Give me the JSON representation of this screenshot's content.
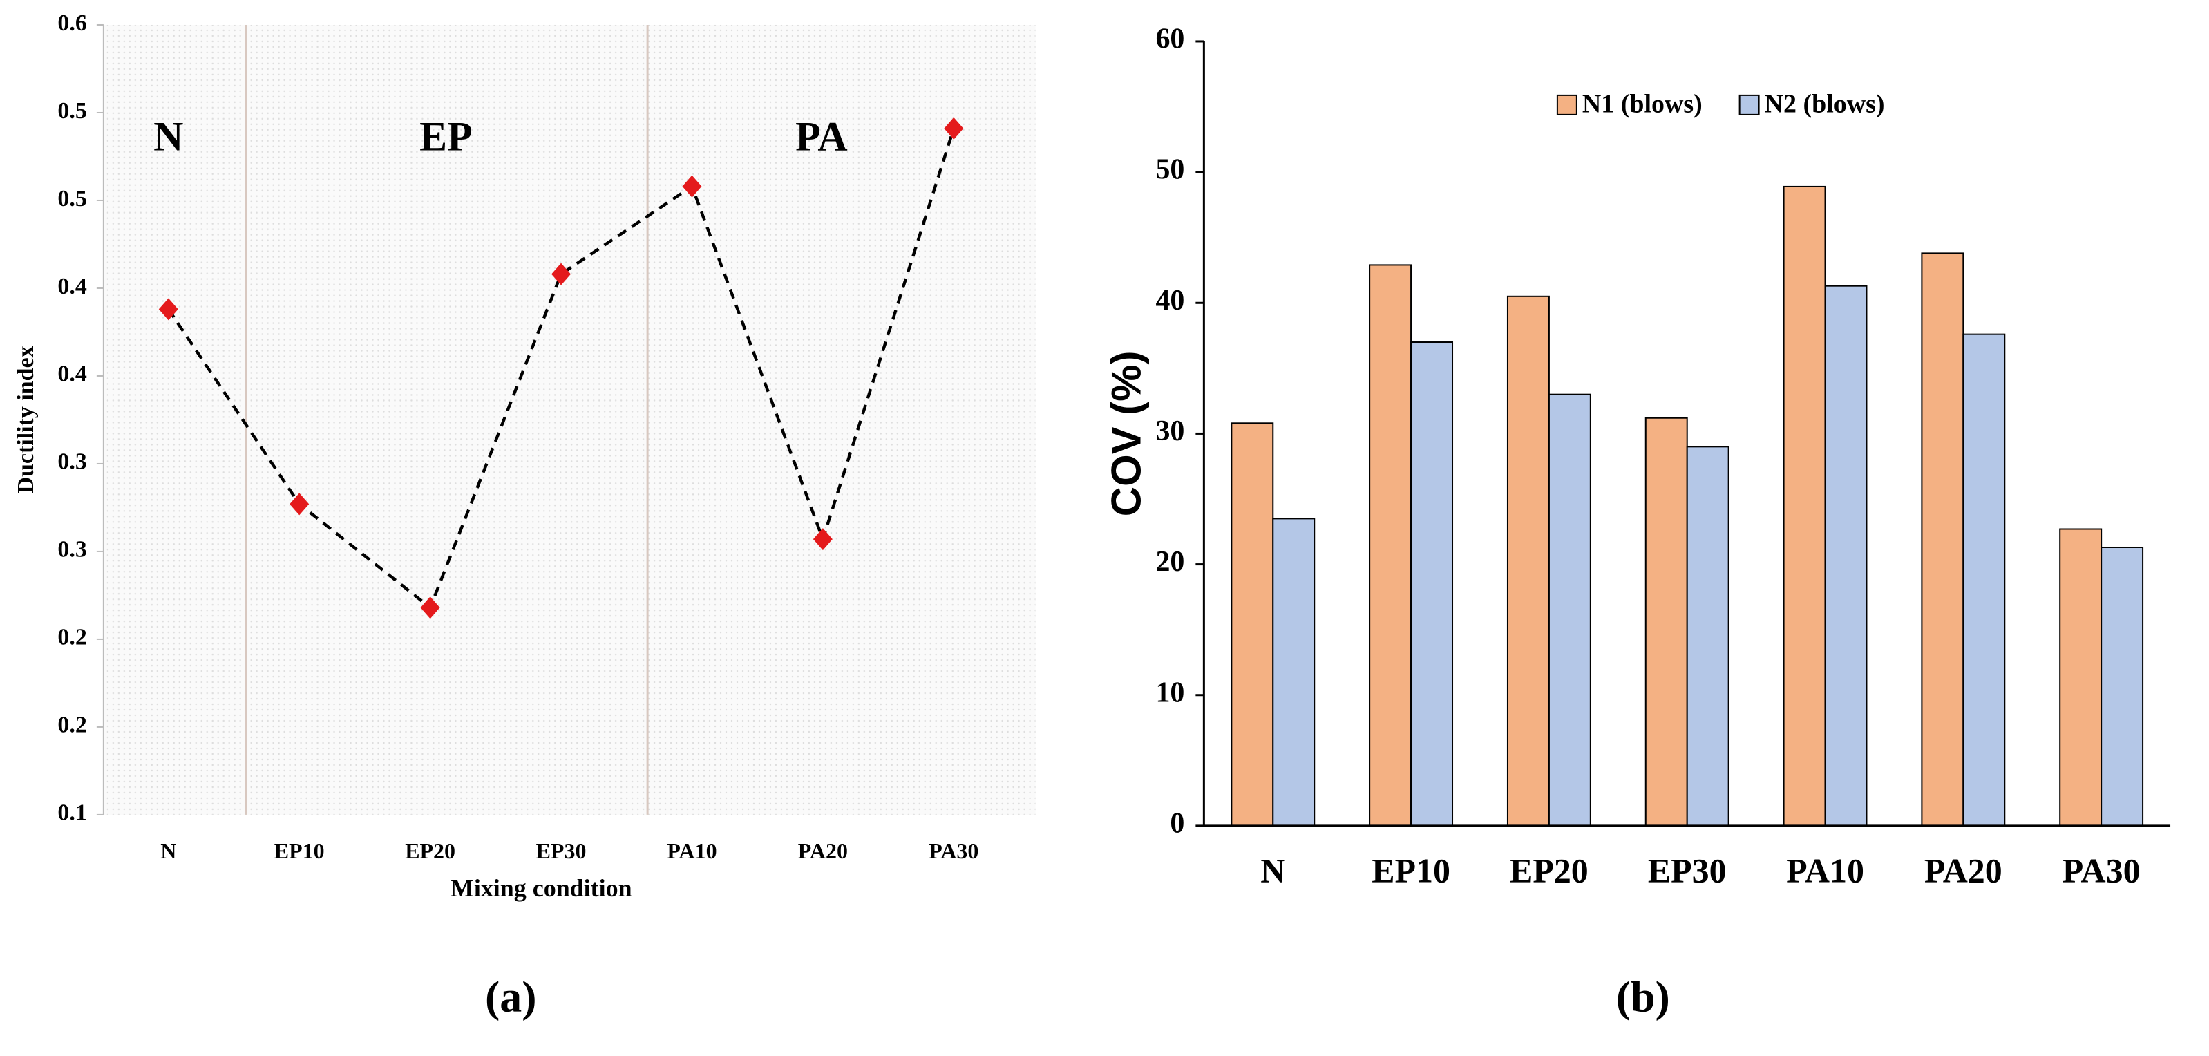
{
  "chart_data": [
    {
      "type": "line",
      "xlabel": "Mixing condition",
      "ylabel": "Ductility index",
      "categories": [
        "N",
        "EP10",
        "EP20",
        "EP30",
        "PA10",
        "PA20",
        "PA30"
      ],
      "values": [
        0.388,
        0.277,
        0.218,
        0.408,
        0.458,
        0.257,
        0.491
      ],
      "color": "#e41a1c",
      "line_color": "#000000",
      "ylim": [
        0.1,
        0.55
      ],
      "yticks": [
        0.1,
        {
          "value": 0.15,
          "label": "0.2"
        },
        0.2,
        {
          "value": 0.25,
          "label": "0.3"
        },
        0.3,
        {
          "value": 0.35,
          "label": "0.4"
        },
        0.4,
        {
          "value": 0.45,
          "label": "0.5"
        },
        0.5,
        {
          "value": 0.55,
          "label": "0.6"
        }
      ],
      "annotations": [
        "N",
        "EP",
        "PA"
      ]
    },
    {
      "type": "bar",
      "ylabel": "COV (%)",
      "categories": [
        "N",
        "EP10",
        "EP20",
        "EP30",
        "PA10",
        "PA20",
        "PA30"
      ],
      "series": [
        {
          "name": "N1 (blows)",
          "color": "#f4b183",
          "values": [
            30.8,
            42.9,
            40.5,
            31.2,
            48.9,
            43.8,
            22.7
          ]
        },
        {
          "name": "N2 (blows)",
          "color": "#b4c7e7",
          "values": [
            23.5,
            37.0,
            33.0,
            29.0,
            41.3,
            37.6,
            21.3
          ]
        }
      ],
      "ylim": [
        0,
        60
      ],
      "yticks": [
        0,
        10,
        20,
        30,
        40,
        50,
        60
      ],
      "legend": "top"
    }
  ],
  "captions": [
    "(a)",
    "(b)"
  ]
}
